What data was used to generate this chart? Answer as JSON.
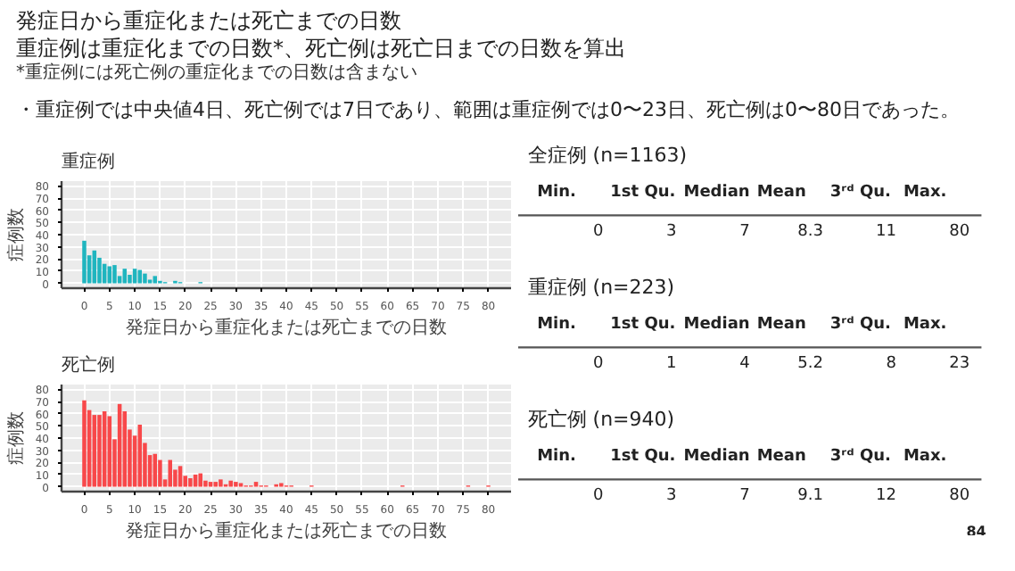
{
  "chart_data": [
    {
      "type": "other",
      "title": "発症日から重症化または死亡までの日数",
      "subtitle": "重症例は重症化までの日数*、死亡例は死亡日までの日数を算出",
      "annotations": [
        "*重症例には死亡例の重症化までの日数は含まない",
        "・重症例では中央値4日、死亡例では7日であり、範囲は重症例では0〜23日、死亡例は0〜80日であった。"
      ]
    },
    {
      "type": "bar",
      "title": "重症例",
      "xlabel": "発症日から重症化または死亡までの日数",
      "ylabel": "症例数",
      "color": "#1fb5bf",
      "grid": true,
      "xlim": [
        -4.5,
        84.5
      ],
      "ylim": [
        -4,
        84
      ],
      "xticks": [
        0,
        5,
        10,
        15,
        20,
        25,
        30,
        35,
        40,
        45,
        50,
        55,
        60,
        65,
        70,
        75,
        80
      ],
      "yticks": [
        0,
        10,
        20,
        30,
        40,
        50,
        60,
        70,
        80
      ],
      "x": [
        0,
        1,
        2,
        3,
        4,
        5,
        6,
        7,
        8,
        9,
        10,
        11,
        12,
        13,
        14,
        15,
        16,
        18,
        19,
        23
      ],
      "values": [
        35,
        23,
        27,
        21,
        16,
        14,
        15,
        6,
        12,
        7,
        12,
        11,
        8,
        3,
        6,
        2,
        1,
        2,
        1,
        1
      ]
    },
    {
      "type": "bar",
      "title": "死亡例",
      "xlabel": "発症日から重症化または死亡までの日数",
      "ylabel": "症例数",
      "color": "#f8484a",
      "grid": true,
      "xlim": [
        -4.5,
        84.5
      ],
      "ylim": [
        -4,
        84
      ],
      "xticks": [
        0,
        5,
        10,
        15,
        20,
        25,
        30,
        35,
        40,
        45,
        50,
        55,
        60,
        65,
        70,
        75,
        80
      ],
      "yticks": [
        0,
        10,
        20,
        30,
        40,
        50,
        60,
        70,
        80
      ],
      "x": [
        0,
        1,
        2,
        3,
        4,
        5,
        6,
        7,
        8,
        9,
        10,
        11,
        12,
        13,
        14,
        15,
        16,
        17,
        18,
        19,
        20,
        21,
        22,
        23,
        24,
        25,
        26,
        27,
        28,
        29,
        30,
        31,
        32,
        33,
        34,
        35,
        36,
        38,
        39,
        40,
        41,
        45,
        63,
        76,
        80
      ],
      "values": [
        71,
        63,
        59,
        59,
        62,
        58,
        39,
        68,
        62,
        47,
        42,
        51,
        36,
        26,
        27,
        22,
        6,
        22,
        14,
        17,
        9,
        7,
        10,
        11,
        5,
        4,
        4,
        6,
        2,
        5,
        4,
        3,
        1,
        1,
        4,
        1,
        1,
        2,
        3,
        1,
        1,
        1,
        1,
        1,
        1
      ]
    },
    {
      "type": "other",
      "title": "全症例 (n=1163)",
      "categories": [
        "Min.",
        "1st Qu.",
        "Median",
        "Mean",
        "3ʳᵈ Qu.",
        "Max."
      ],
      "values": [
        0,
        3,
        7,
        8.3,
        11,
        80
      ],
      "data_labels": true
    },
    {
      "type": "other",
      "title": "重症例 (n=223)",
      "categories": [
        "Min.",
        "1st Qu.",
        "Median",
        "Mean",
        "3ʳᵈ Qu.",
        "Max."
      ],
      "values": [
        0,
        1,
        4,
        5.2,
        8,
        23
      ],
      "data_labels": true
    },
    {
      "type": "other",
      "title": "死亡例 (n=940)",
      "categories": [
        "Min.",
        "1st Qu.",
        "Median",
        "Mean",
        "3ʳᵈ Qu.",
        "Max."
      ],
      "values": [
        0,
        3,
        7,
        9.1,
        12,
        80
      ],
      "data_labels": true,
      "annotations": [
        "84"
      ]
    }
  ]
}
